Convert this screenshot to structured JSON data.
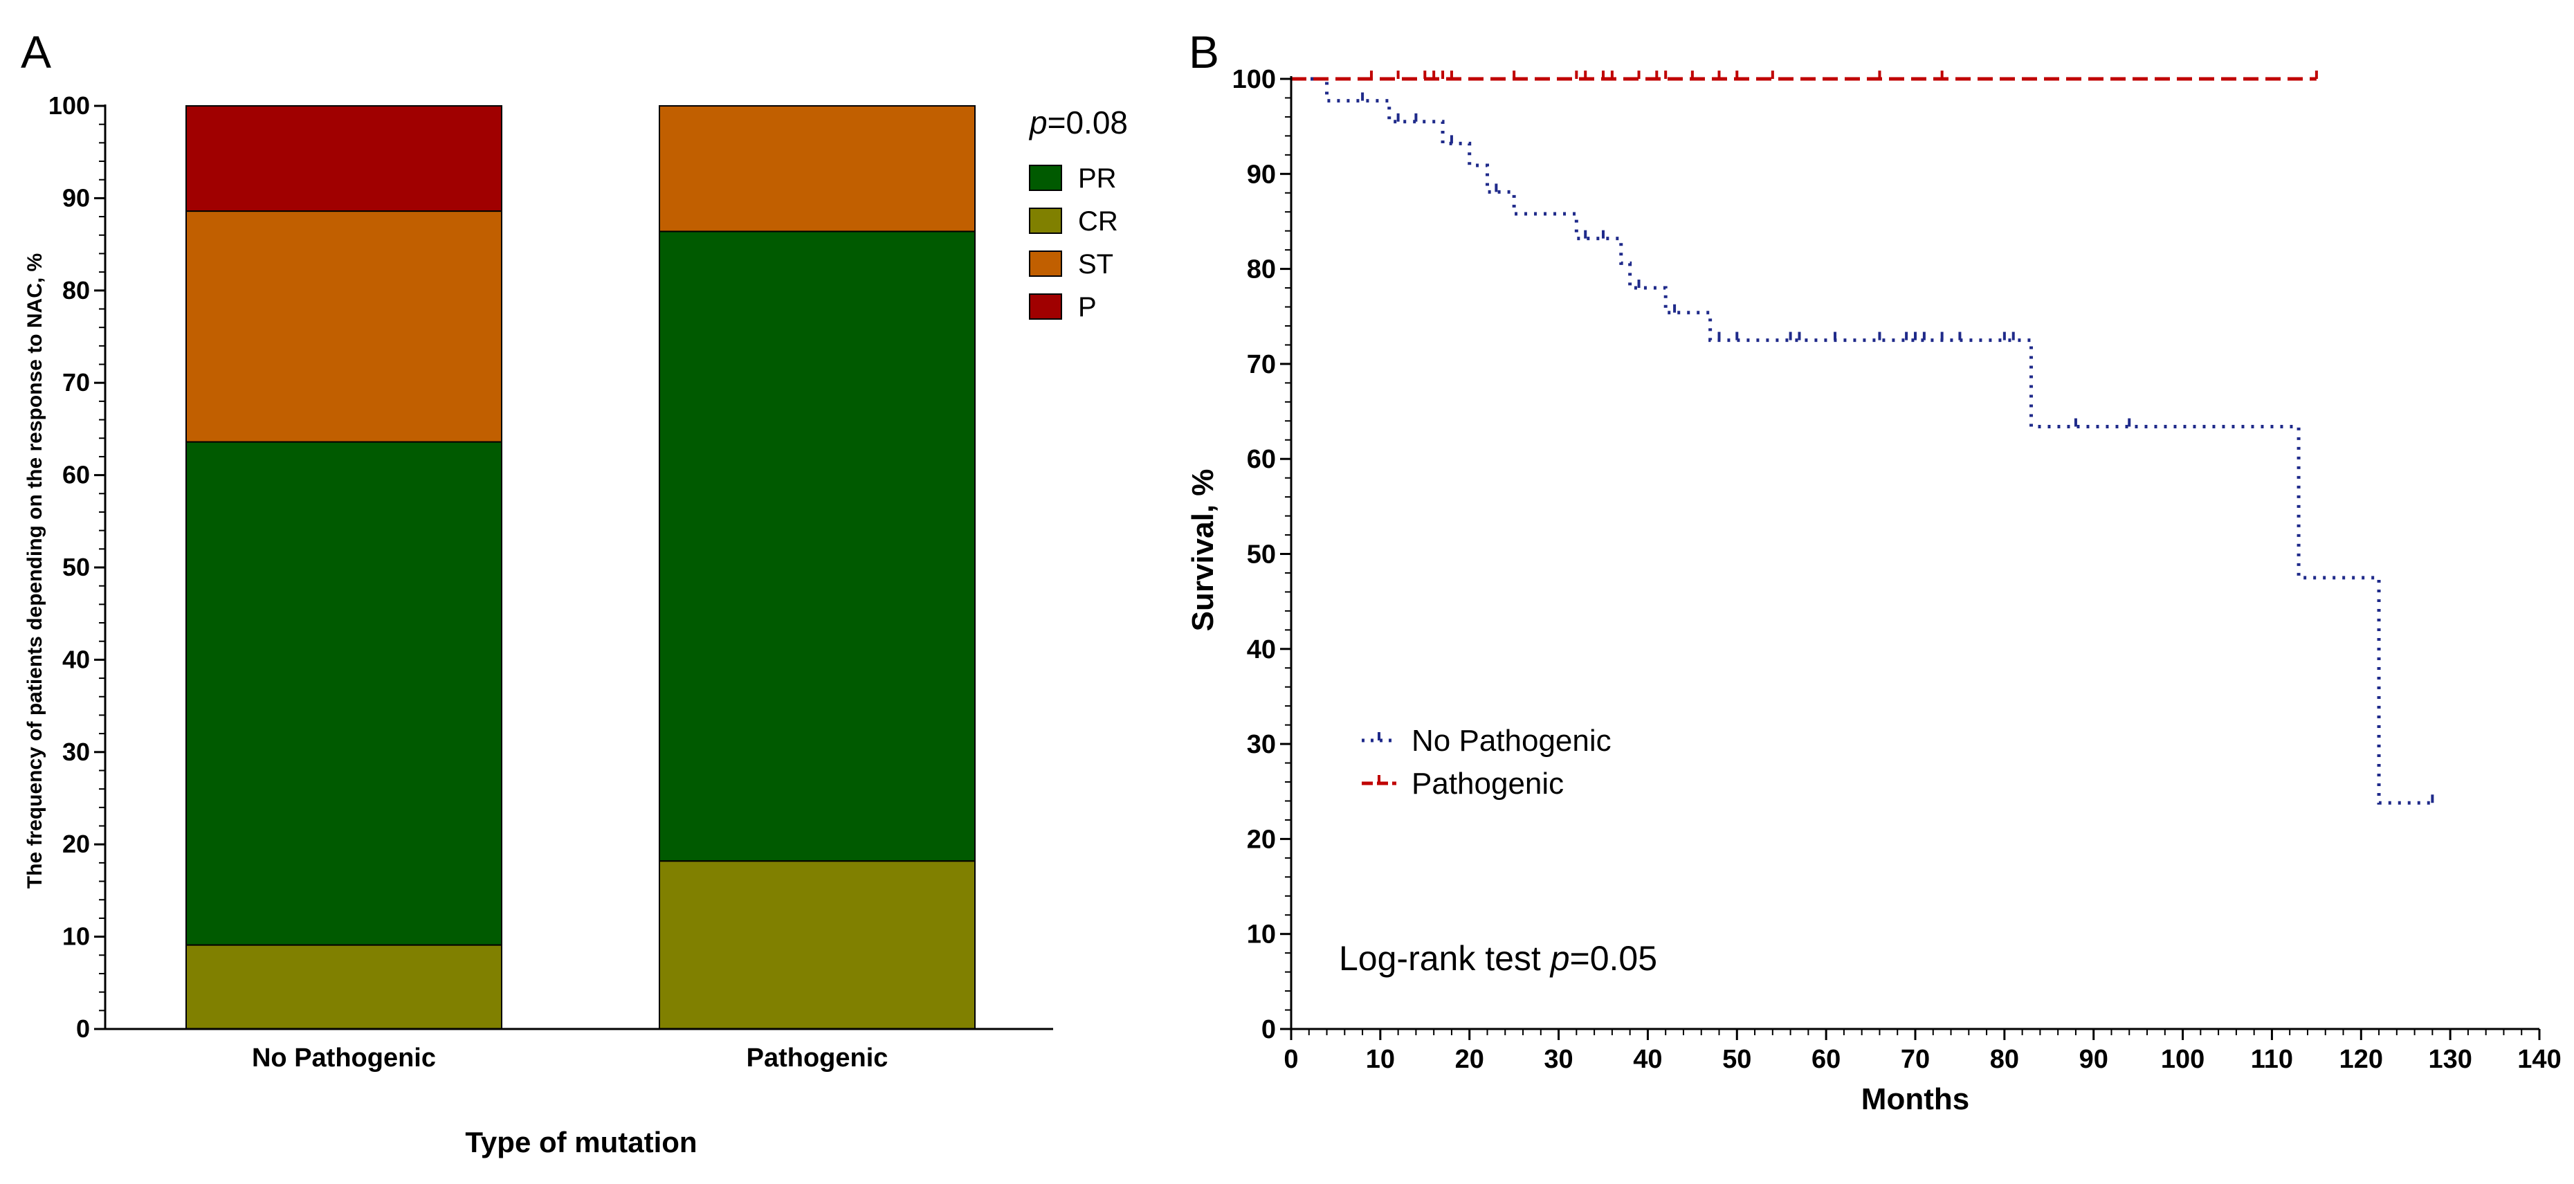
{
  "panels": {
    "a": "A",
    "b": "B"
  },
  "chart_data": [
    {
      "id": "A",
      "type": "bar",
      "stacked": true,
      "title": "",
      "xlabel": "Type of mutation",
      "ylabel": "The frequency of patients depending on the response to NAC, %",
      "categories": [
        "No Pathogenic",
        "Pathogenic"
      ],
      "series": [
        {
          "name": "CR",
          "color": "#808000",
          "values": [
            9.1,
            18.2
          ]
        },
        {
          "name": "PR",
          "color": "#005a00",
          "values": [
            54.5,
            68.2
          ]
        },
        {
          "name": "ST",
          "color": "#c15f00",
          "values": [
            25.0,
            13.6
          ]
        },
        {
          "name": "P",
          "color": "#a00000",
          "values": [
            11.4,
            0
          ]
        }
      ],
      "legend_order": [
        "PR",
        "CR",
        "ST",
        "P"
      ],
      "legend_placement": "top-right",
      "annotation": {
        "prefix": "p",
        "text": "=0.08"
      },
      "ylim": [
        0,
        100
      ],
      "yticks": [
        0,
        10,
        20,
        30,
        40,
        50,
        60,
        70,
        80,
        90,
        100
      ]
    },
    {
      "id": "B",
      "type": "line",
      "subtype": "kaplan-meier",
      "title": "",
      "xlabel": "Months",
      "ylabel": "Survival, %",
      "xlim": [
        0,
        140
      ],
      "ylim": [
        0,
        100
      ],
      "xticks": [
        0,
        10,
        20,
        30,
        40,
        50,
        60,
        70,
        80,
        90,
        100,
        110,
        120,
        130,
        140
      ],
      "yticks": [
        0,
        10,
        20,
        30,
        40,
        50,
        60,
        70,
        80,
        90,
        100
      ],
      "legend_placement": "bottom-left",
      "annotation": {
        "before": "Log-rank test ",
        "italic": "p",
        "after": "=0.05"
      },
      "series": [
        {
          "name": "No Pathogenic",
          "color": "#1f2a8a",
          "style": "dotted",
          "steps": [
            [
              0,
              100
            ],
            [
              4,
              97.7
            ],
            [
              11,
              95.5
            ],
            [
              17,
              93.2
            ],
            [
              20,
              90.9
            ],
            [
              22,
              88.1
            ],
            [
              25,
              85.8
            ],
            [
              32,
              83.2
            ],
            [
              37,
              80.6
            ],
            [
              38,
              78.0
            ],
            [
              42,
              75.4
            ],
            [
              47,
              72.5
            ],
            [
              83,
              63.4
            ],
            [
              113,
              47.5
            ],
            [
              122,
              23.8
            ],
            [
              128,
              23.8
            ]
          ],
          "censored": [
            [
              8,
              97.7
            ],
            [
              12,
              95.5
            ],
            [
              14,
              95.5
            ],
            [
              18,
              93.2
            ],
            [
              23,
              88.1
            ],
            [
              33,
              83.2
            ],
            [
              35,
              83.2
            ],
            [
              39,
              78.0
            ],
            [
              43,
              75.4
            ],
            [
              48,
              72.5
            ],
            [
              50,
              72.5
            ],
            [
              56,
              72.5
            ],
            [
              57,
              72.5
            ],
            [
              61,
              72.5
            ],
            [
              66,
              72.5
            ],
            [
              69,
              72.5
            ],
            [
              70,
              72.5
            ],
            [
              71,
              72.5
            ],
            [
              73,
              72.5
            ],
            [
              75,
              72.5
            ],
            [
              80,
              72.5
            ],
            [
              81,
              72.5
            ],
            [
              88,
              63.4
            ],
            [
              94,
              63.4
            ],
            [
              128,
              23.8
            ]
          ]
        },
        {
          "name": "Pathogenic",
          "color": "#c00000",
          "style": "dashed",
          "steps": [
            [
              0,
              100
            ],
            [
              115,
              100
            ]
          ],
          "censored": [
            [
              9,
              100
            ],
            [
              12,
              100
            ],
            [
              15,
              100
            ],
            [
              16,
              100
            ],
            [
              17,
              100
            ],
            [
              18,
              100
            ],
            [
              25,
              100
            ],
            [
              32,
              100
            ],
            [
              33,
              100
            ],
            [
              35,
              100
            ],
            [
              36,
              100
            ],
            [
              39,
              100
            ],
            [
              41,
              100
            ],
            [
              42,
              100
            ],
            [
              45,
              100
            ],
            [
              48,
              100
            ],
            [
              50,
              100
            ],
            [
              54,
              100
            ],
            [
              66,
              100
            ],
            [
              73,
              100
            ],
            [
              115,
              100
            ]
          ]
        }
      ]
    }
  ]
}
